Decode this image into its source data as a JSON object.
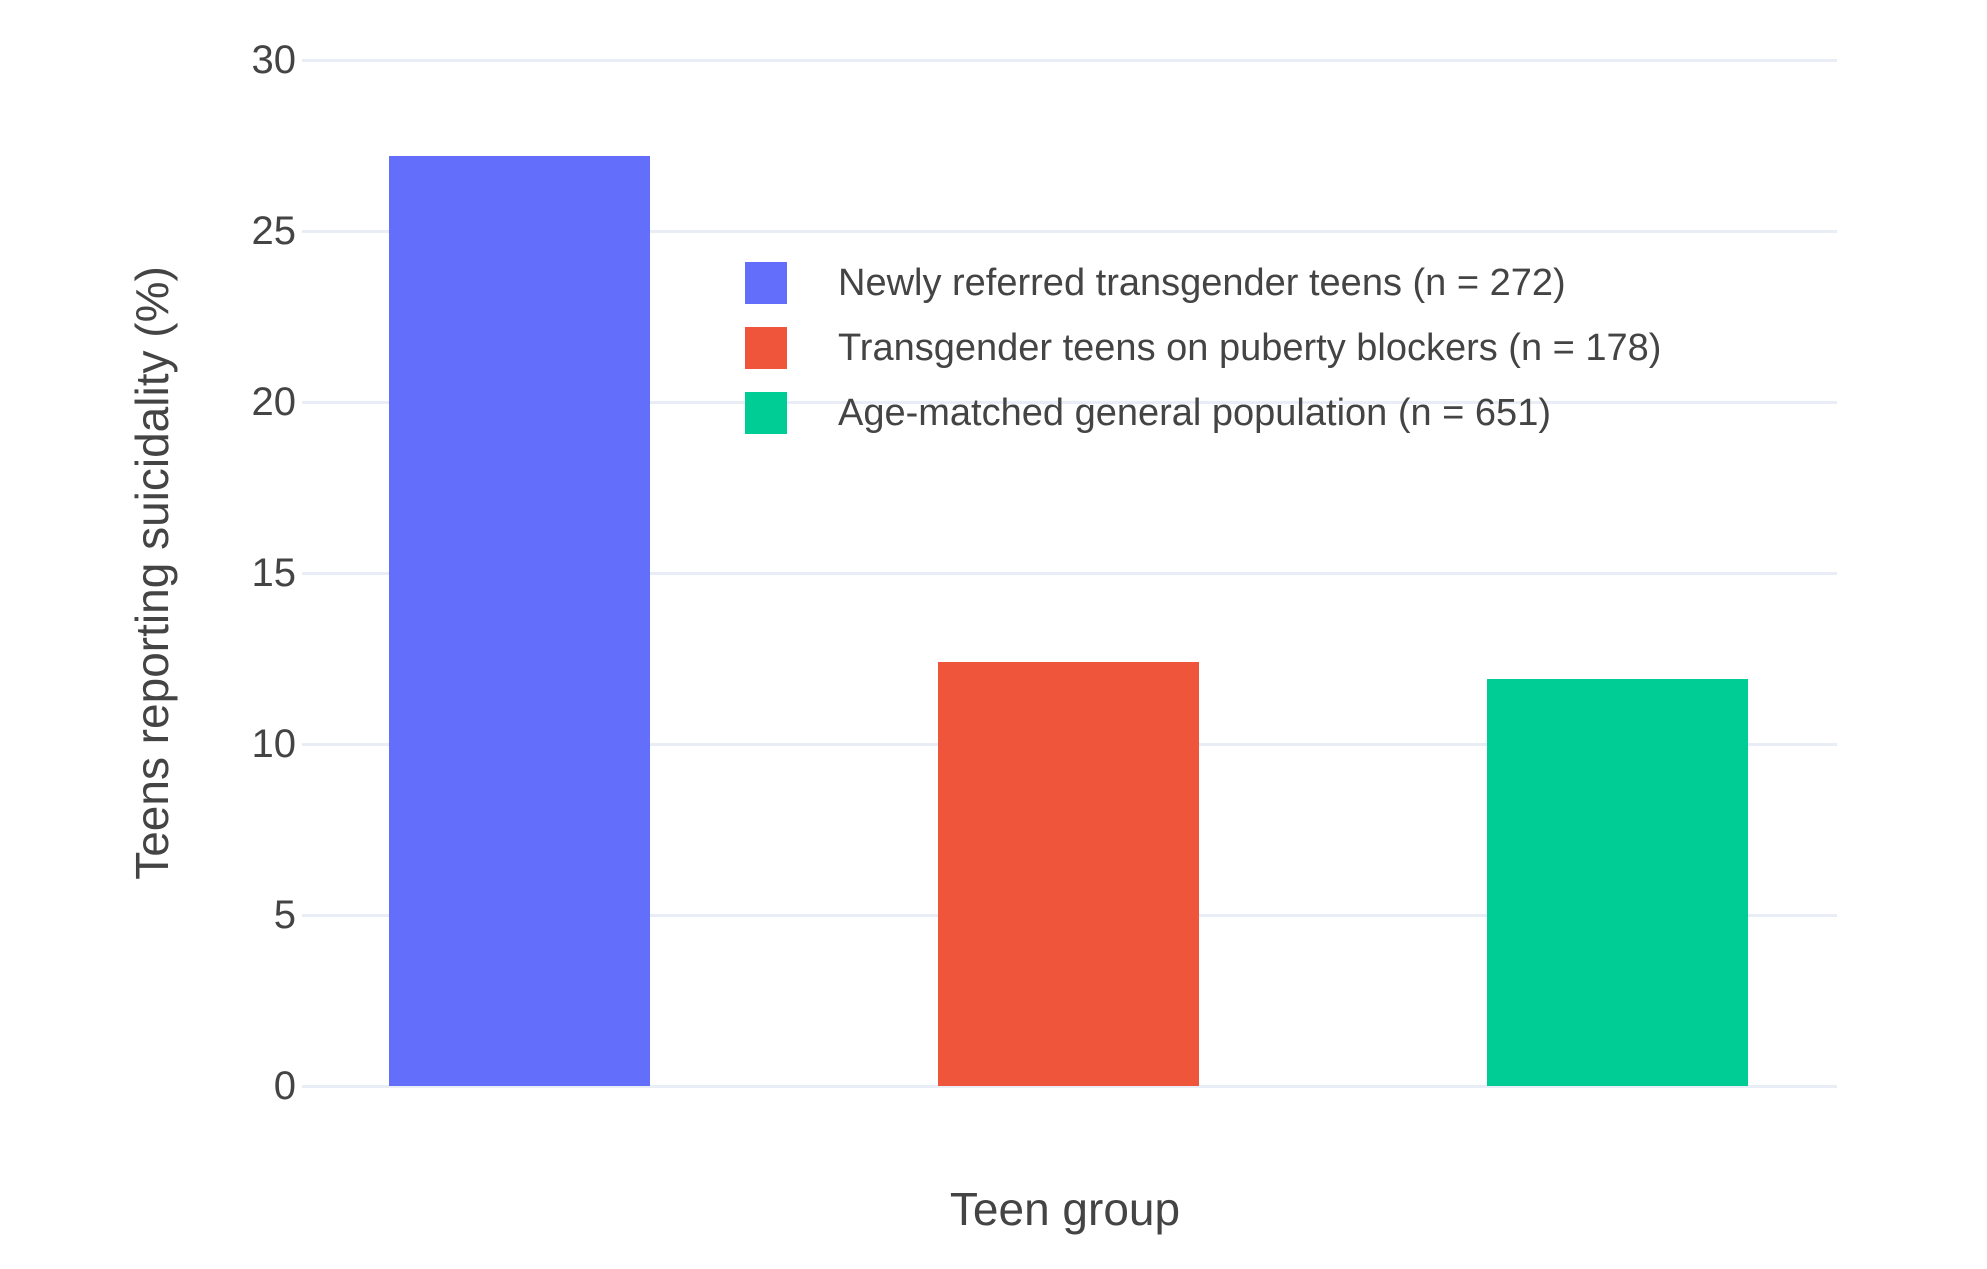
{
  "chart_data": {
    "type": "bar",
    "title": "",
    "xlabel": "Teen group",
    "ylabel": "Teens reporting suicidality (%)",
    "ylim": [
      0,
      30
    ],
    "yticks": [
      0,
      5,
      10,
      15,
      20,
      25,
      30
    ],
    "grid": true,
    "legend_position": "inside top-center",
    "categories": [
      "Newly referred transgender teens",
      "Transgender teens on puberty blockers",
      "Age-matched general population"
    ],
    "series": [
      {
        "name": "Newly referred transgender teens (n = 272)",
        "value": 27.2,
        "color": "#636EFA"
      },
      {
        "name": "Transgender teens on puberty blockers (n = 178)",
        "value": 12.4,
        "color": "#EF553B"
      },
      {
        "name": "Age-matched general population (n = 651)",
        "value": 11.9,
        "color": "#00CC96"
      }
    ],
    "colors": {
      "background": "#FFFFFF",
      "gridline": "#E9EEF6",
      "text": "#444444"
    }
  }
}
